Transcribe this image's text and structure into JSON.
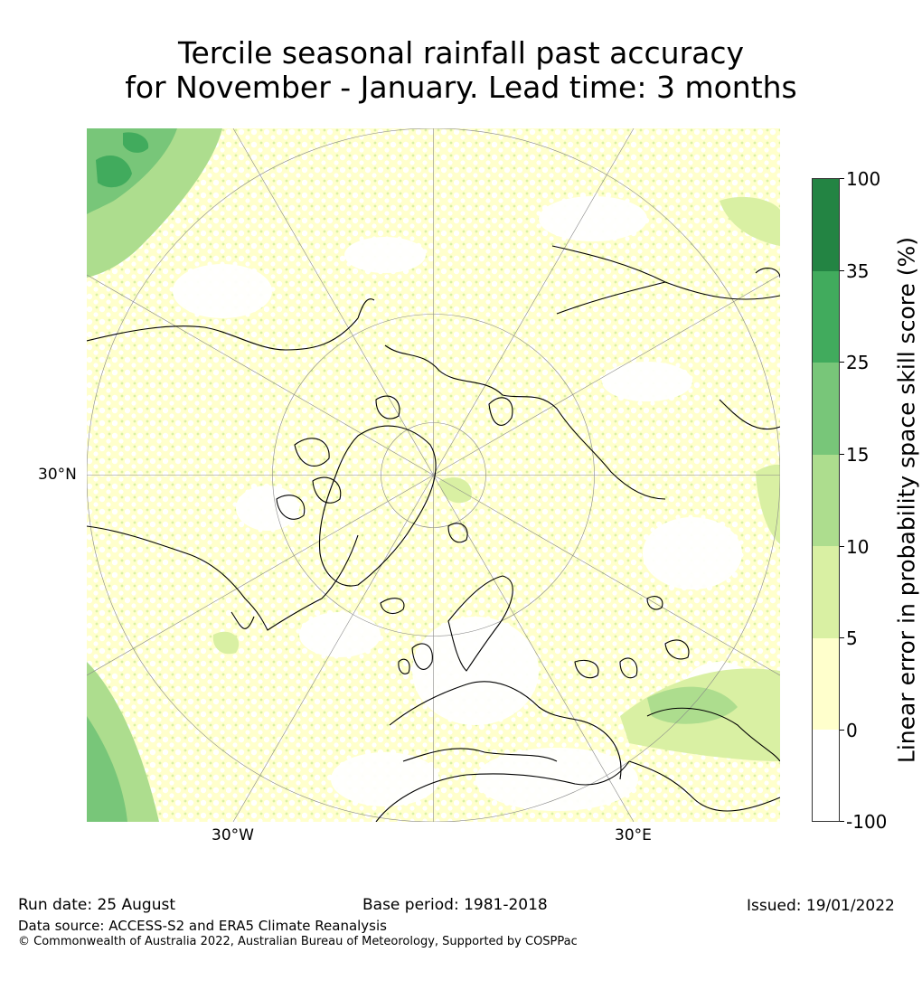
{
  "title": {
    "line1": "Tercile seasonal rainfall past accuracy",
    "line2": "for November - January. Lead time: 3 months"
  },
  "map": {
    "projection": "north-polar-stereographic",
    "lat_label": "30°N",
    "lon_labels": [
      "30°W",
      "30°E"
    ],
    "colors": {
      "white_bin": "#ffffff",
      "light_yellow": "#ffffcc",
      "yellow_green": "#d9f0a3",
      "light_green": "#addd8e",
      "mid_green": "#78c679",
      "green": "#41ab5d",
      "dark_green": "#238443",
      "coastline": "#000000",
      "gridline": "#888888"
    }
  },
  "colorbar": {
    "title": "Linear error in probability space skill score (%)",
    "ticks": [
      "100",
      "35",
      "25",
      "15",
      "10",
      "5",
      "0",
      "-100"
    ],
    "bins": [
      {
        "from": "35",
        "to": "100",
        "color": "#238443"
      },
      {
        "from": "25",
        "to": "35",
        "color": "#41ab5d"
      },
      {
        "from": "15",
        "to": "25",
        "color": "#78c679"
      },
      {
        "from": "10",
        "to": "15",
        "color": "#addd8e"
      },
      {
        "from": "5",
        "to": "10",
        "color": "#d9f0a3"
      },
      {
        "from": "0",
        "to": "5",
        "color": "#ffffcc"
      },
      {
        "from": "-100",
        "to": "0",
        "color": "#ffffff"
      }
    ]
  },
  "footer": {
    "run_date": "Run date: 25 August",
    "base_period": "Base period: 1981-2018",
    "issued": "Issued: 19/01/2022",
    "data_source": "Data source: ACCESS-S2 and ERA5 Climate Reanalysis",
    "copyright": "© Commonwealth of Australia 2022, Australian Bureau of Meteorology, Supported by COSPPac"
  }
}
